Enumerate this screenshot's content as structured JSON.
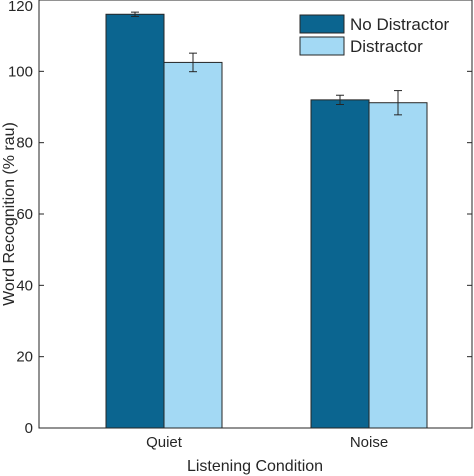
{
  "chart_data": {
    "type": "bar",
    "xlabel": "Listening Condition",
    "ylabel": "Word Recognition (% rau)",
    "categories": [
      "Quiet",
      "Noise"
    ],
    "ylim": [
      0,
      120
    ],
    "yticks": [
      0,
      20,
      40,
      60,
      80,
      100,
      120
    ],
    "grid": false,
    "legend_position": "top-right",
    "series": [
      {
        "name": "No Distractor",
        "color": "#0b6590",
        "values": [
          116,
          92
        ],
        "errors": [
          0.6,
          1.3
        ]
      },
      {
        "name": "Distractor",
        "color": "#a3d9f4",
        "values": [
          102.5,
          91.2
        ],
        "errors": [
          2.6,
          3.4
        ]
      }
    ]
  }
}
